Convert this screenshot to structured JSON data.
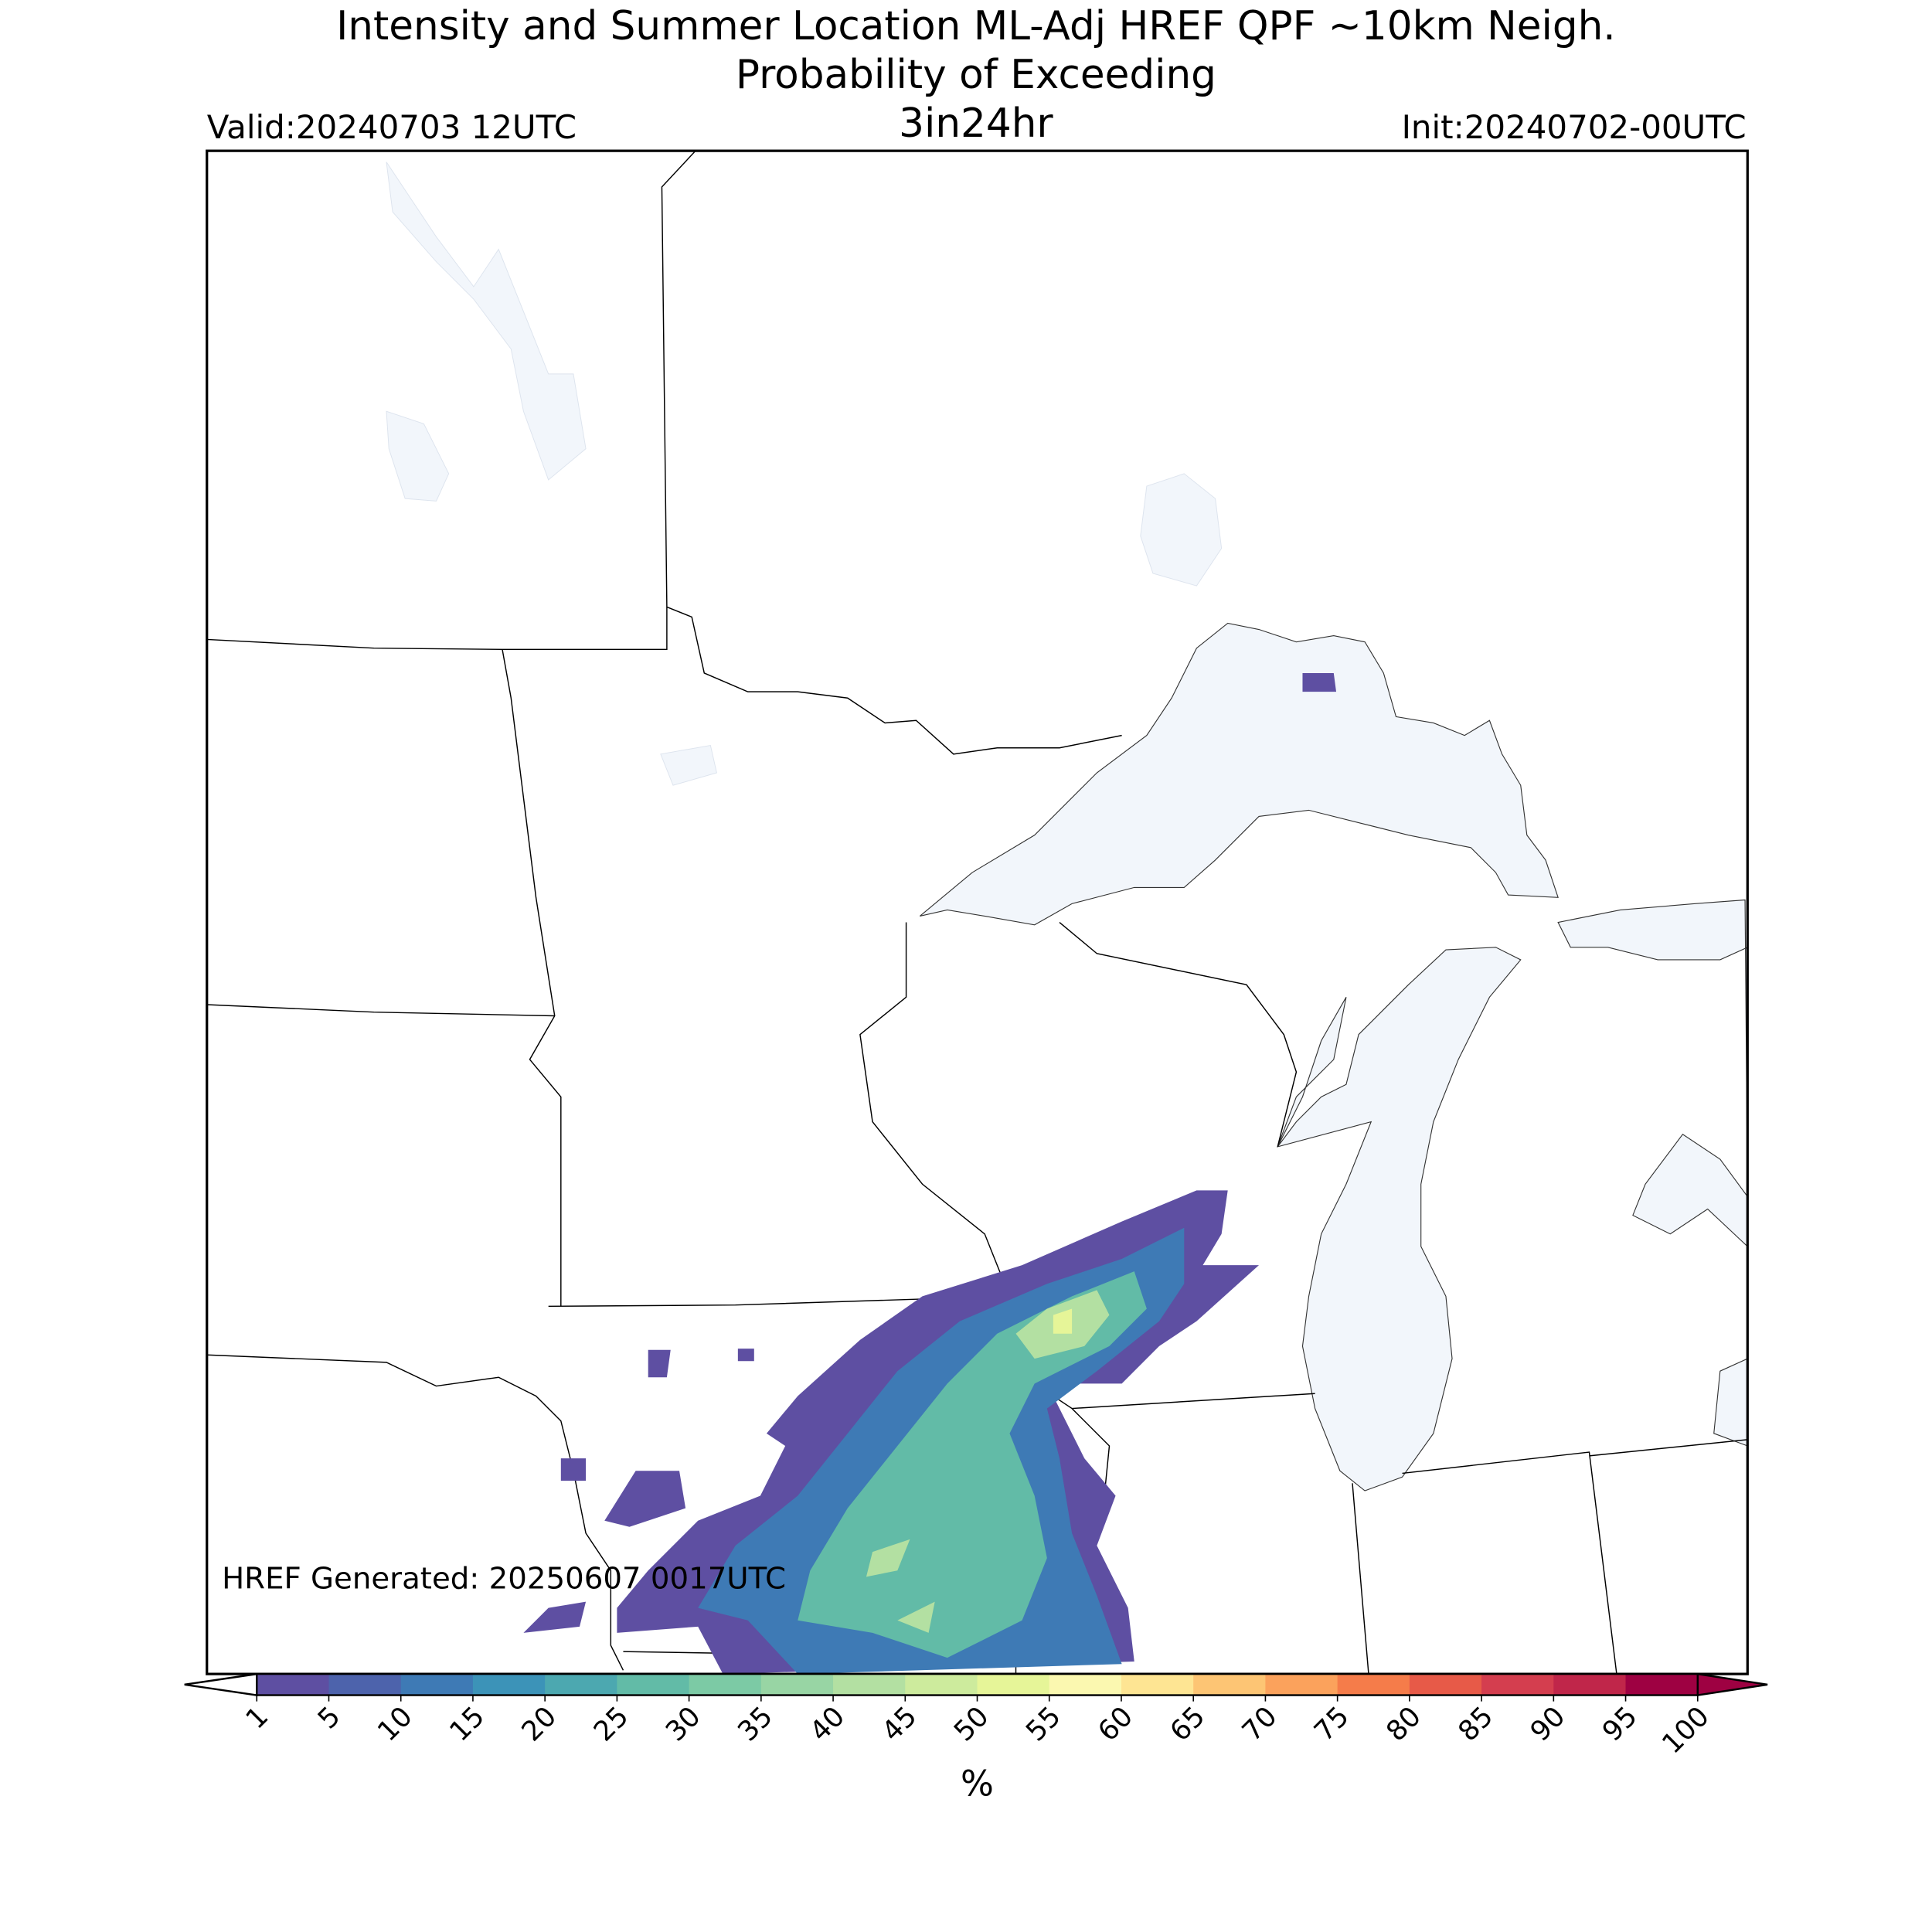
{
  "header": {
    "title_lines": [
      "Intensity and Summer Location ML-Adj HREF QPF ~10km Neigh.",
      "Probability of Exceeding"
    ],
    "valid": "Valid:20240703 12UTC",
    "threshold": "3in24hr",
    "init": "Init:20240702-00UTC"
  },
  "map": {
    "note": "HREF Generated: 20250607 0017UTC"
  },
  "colorbar": {
    "label": "%",
    "ticks": [
      1,
      5,
      10,
      15,
      20,
      25,
      30,
      35,
      40,
      45,
      50,
      55,
      60,
      65,
      70,
      75,
      80,
      85,
      90,
      95,
      100
    ],
    "colors": [
      "#5e4fa2",
      "#4d63ac",
      "#3e7ab5",
      "#3c93b8",
      "#4ca8b0",
      "#62bba7",
      "#7ccaa5",
      "#98d5a4",
      "#b3e0a2",
      "#cdeb9d",
      "#e6f598",
      "#fbf8b0",
      "#fee593",
      "#fdc574",
      "#fba25c",
      "#f57c4a",
      "#e75a48",
      "#d43e4f",
      "#c0264a",
      "#9e0142"
    ],
    "under_color": "#ffffff",
    "over_color": "#9e0142"
  }
}
